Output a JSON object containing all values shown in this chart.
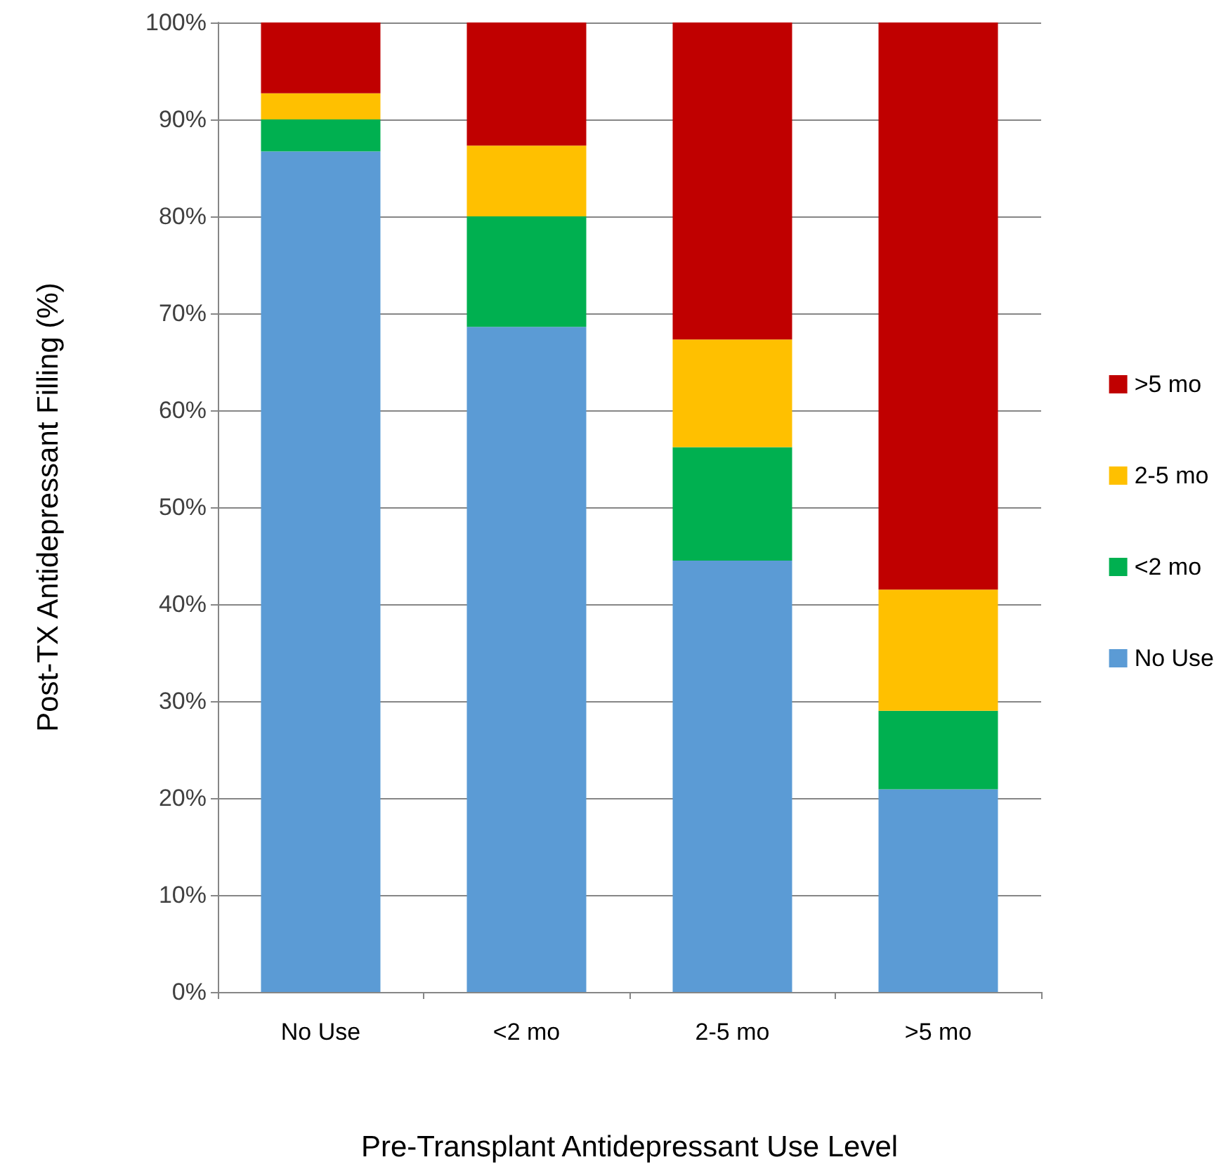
{
  "chart_data": {
    "type": "bar",
    "stacked": true,
    "xlabel": "Pre-Transplant Antidepressant Use Level",
    "ylabel": "Post-TX Antidepressant Filling (%)",
    "categories": [
      "No Use",
      "<2 mo",
      "2-5 mo",
      ">5 mo"
    ],
    "series": [
      {
        "name": "No Use",
        "color": "#5b9bd5",
        "values": [
          86.7,
          68.6,
          44.5,
          20.9
        ]
      },
      {
        "name": "<2 mo",
        "color": "#00b050",
        "values": [
          3.3,
          11.4,
          11.7,
          8.1
        ]
      },
      {
        "name": "2-5 mo",
        "color": "#ffc000",
        "values": [
          2.7,
          7.3,
          11.1,
          12.5
        ]
      },
      {
        "name": ">5 mo",
        "color": "#c00000",
        "values": [
          7.3,
          12.7,
          32.7,
          58.5
        ]
      }
    ],
    "ylim": [
      0,
      100
    ],
    "yticks": [
      {
        "value": 0,
        "label": "0%"
      },
      {
        "value": 10,
        "label": "10%"
      },
      {
        "value": 20,
        "label": "20%"
      },
      {
        "value": 30,
        "label": "30%"
      },
      {
        "value": 40,
        "label": "40%"
      },
      {
        "value": 50,
        "label": "50%"
      },
      {
        "value": 60,
        "label": "60%"
      },
      {
        "value": 70,
        "label": "70%"
      },
      {
        "value": 80,
        "label": "80%"
      },
      {
        "value": 90,
        "label": "90%"
      },
      {
        "value": 100,
        "label": "100%"
      }
    ],
    "grid": "y",
    "legend": "right"
  }
}
